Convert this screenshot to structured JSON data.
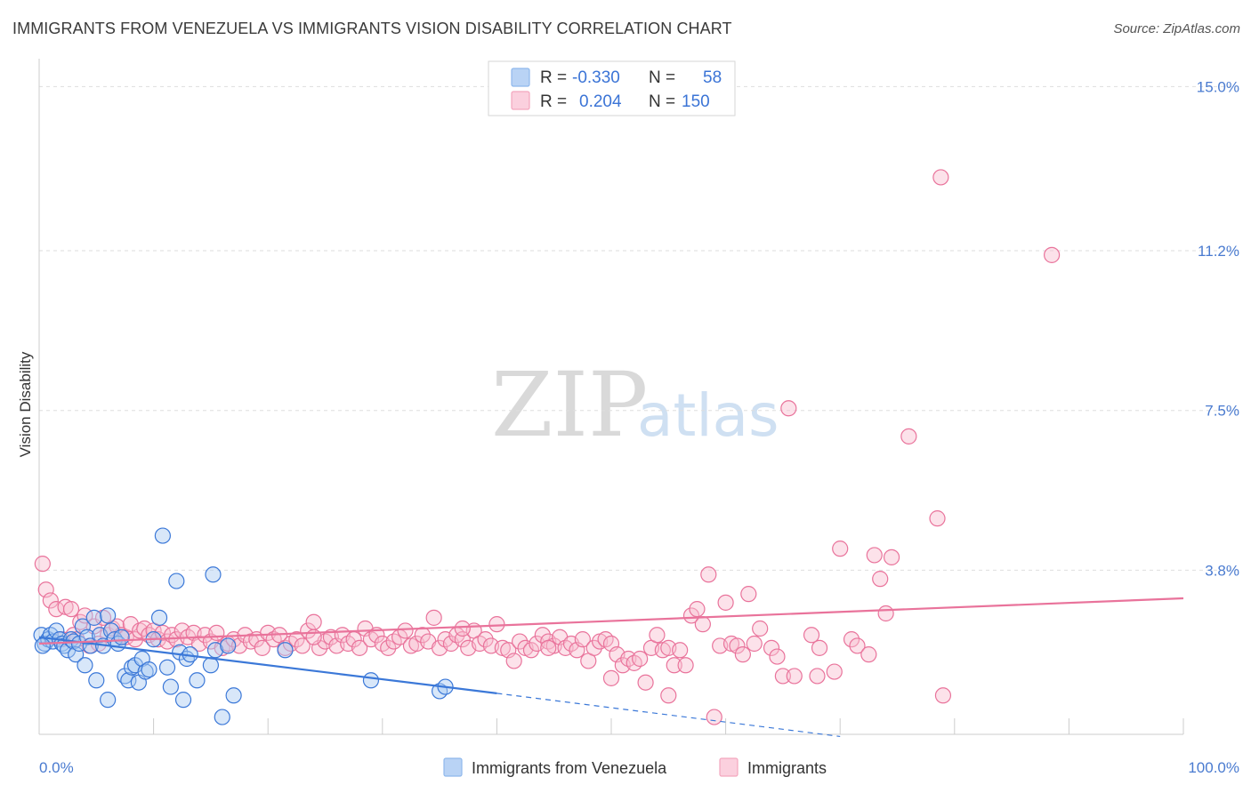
{
  "header": {
    "title": "IMMIGRANTS FROM VENEZUELA VS IMMIGRANTS VISION DISABILITY CORRELATION CHART",
    "source": "Source: ZipAtlas.com"
  },
  "watermark": {
    "zip": "ZIP",
    "atlas": "atlas"
  },
  "legend": {
    "rows": [
      {
        "r_label": "R =",
        "r_value": "-0.330",
        "n_label": "N =",
        "n_value": "58",
        "color": "#8fb8ec"
      },
      {
        "r_label": "R =",
        "r_value": "0.204",
        "n_label": "N =",
        "n_value": "150",
        "color": "#f4a6be"
      }
    ]
  },
  "bottom_legend": {
    "items": [
      {
        "label": "Immigrants from Venezuela",
        "color": "#8fb8ec"
      },
      {
        "label": "Immigrants",
        "color": "#f4a6be"
      }
    ]
  },
  "chart_data": {
    "type": "scatter",
    "title": "IMMIGRANTS FROM VENEZUELA VS IMMIGRANTS VISION DISABILITY CORRELATION CHART",
    "xlabel": "",
    "ylabel": "Vision Disability",
    "xlim": [
      0,
      100
    ],
    "ylim": [
      0,
      15.4
    ],
    "x_tick_labels": [
      "0.0%",
      "100.0%"
    ],
    "y_ticks": [
      3.8,
      7.5,
      11.2,
      15.0
    ],
    "y_tick_labels": [
      "3.8%",
      "7.5%",
      "11.2%",
      "15.0%"
    ],
    "grid": true,
    "colors": {
      "blue": "#3b78d8",
      "pink": "#e9739b",
      "blue_fill": "#a9c9f1",
      "pink_fill": "#f8bfd1"
    },
    "series": [
      {
        "name": "Immigrants from Venezuela",
        "trend": {
          "x": [
            0,
            40
          ],
          "y": [
            2.25,
            0.95
          ],
          "dashed_to": [
            70,
            -0.05
          ]
        },
        "points": [
          [
            0.2,
            2.3
          ],
          [
            0.5,
            2.1
          ],
          [
            0.8,
            2.2
          ],
          [
            1.0,
            2.3
          ],
          [
            1.2,
            2.15
          ],
          [
            1.5,
            2.4
          ],
          [
            1.8,
            2.2
          ],
          [
            2.0,
            2.1
          ],
          [
            2.2,
            2.05
          ],
          [
            2.5,
            1.95
          ],
          [
            2.8,
            2.2
          ],
          [
            3.0,
            2.15
          ],
          [
            3.2,
            1.85
          ],
          [
            3.5,
            2.1
          ],
          [
            3.8,
            2.5
          ],
          [
            4.0,
            1.6
          ],
          [
            4.2,
            2.25
          ],
          [
            4.5,
            2.05
          ],
          [
            4.8,
            2.7
          ],
          [
            5.0,
            1.25
          ],
          [
            5.3,
            2.3
          ],
          [
            5.6,
            2.05
          ],
          [
            6.0,
            2.75
          ],
          [
            6.3,
            2.4
          ],
          [
            6.6,
            2.2
          ],
          [
            6.9,
            2.1
          ],
          [
            7.2,
            2.25
          ],
          [
            7.5,
            1.35
          ],
          [
            7.8,
            1.25
          ],
          [
            8.1,
            1.55
          ],
          [
            8.4,
            1.6
          ],
          [
            8.7,
            1.2
          ],
          [
            9.0,
            1.75
          ],
          [
            9.3,
            1.45
          ],
          [
            9.6,
            1.5
          ],
          [
            10.0,
            2.2
          ],
          [
            10.5,
            2.7
          ],
          [
            10.8,
            4.6
          ],
          [
            11.2,
            1.55
          ],
          [
            11.5,
            1.1
          ],
          [
            12.0,
            3.55
          ],
          [
            12.3,
            1.9
          ],
          [
            12.6,
            0.8
          ],
          [
            12.9,
            1.75
          ],
          [
            13.2,
            1.85
          ],
          [
            13.8,
            1.25
          ],
          [
            15.0,
            1.6
          ],
          [
            15.2,
            3.7
          ],
          [
            15.4,
            1.95
          ],
          [
            16.0,
            0.4
          ],
          [
            16.5,
            2.05
          ],
          [
            17.0,
            0.9
          ],
          [
            21.5,
            1.95
          ],
          [
            29.0,
            1.25
          ],
          [
            35.0,
            1.0
          ],
          [
            35.5,
            1.1
          ],
          [
            0.3,
            2.05
          ],
          [
            6.0,
            0.8
          ]
        ]
      },
      {
        "name": "Immigrants",
        "trend": {
          "x": [
            0,
            100
          ],
          "y": [
            2.1,
            3.15
          ]
        },
        "points": [
          [
            0.3,
            3.95
          ],
          [
            0.6,
            3.35
          ],
          [
            1.0,
            3.1
          ],
          [
            1.5,
            2.9
          ],
          [
            2.0,
            2.2
          ],
          [
            2.3,
            2.95
          ],
          [
            2.8,
            2.9
          ],
          [
            3.0,
            2.3
          ],
          [
            3.3,
            2.2
          ],
          [
            3.6,
            2.6
          ],
          [
            4.0,
            2.75
          ],
          [
            4.4,
            2.05
          ],
          [
            4.8,
            2.5
          ],
          [
            5.2,
            2.1
          ],
          [
            5.6,
            2.7
          ],
          [
            6.0,
            2.3
          ],
          [
            6.4,
            2.45
          ],
          [
            6.8,
            2.5
          ],
          [
            7.2,
            2.3
          ],
          [
            7.6,
            2.25
          ],
          [
            8.0,
            2.55
          ],
          [
            8.4,
            2.2
          ],
          [
            8.8,
            2.4
          ],
          [
            9.2,
            2.45
          ],
          [
            9.6,
            2.3
          ],
          [
            10.0,
            2.4
          ],
          [
            10.4,
            2.2
          ],
          [
            10.8,
            2.35
          ],
          [
            11.2,
            2.15
          ],
          [
            11.6,
            2.3
          ],
          [
            12.0,
            2.2
          ],
          [
            12.5,
            2.4
          ],
          [
            13.0,
            2.25
          ],
          [
            13.5,
            2.35
          ],
          [
            14.0,
            2.1
          ],
          [
            14.5,
            2.3
          ],
          [
            15.0,
            2.15
          ],
          [
            15.5,
            2.35
          ],
          [
            16.0,
            2.0
          ],
          [
            16.5,
            2.1
          ],
          [
            17.0,
            2.2
          ],
          [
            17.5,
            2.05
          ],
          [
            18.0,
            2.3
          ],
          [
            18.5,
            2.15
          ],
          [
            19.0,
            2.2
          ],
          [
            19.5,
            2.0
          ],
          [
            20.0,
            2.35
          ],
          [
            20.5,
            2.2
          ],
          [
            21.0,
            2.3
          ],
          [
            21.5,
            2.0
          ],
          [
            22.0,
            2.1
          ],
          [
            22.5,
            2.2
          ],
          [
            23.0,
            2.05
          ],
          [
            23.5,
            2.4
          ],
          [
            24.0,
            2.6
          ],
          [
            24.5,
            2.0
          ],
          [
            25.0,
            2.15
          ],
          [
            25.5,
            2.25
          ],
          [
            26.0,
            2.05
          ],
          [
            26.5,
            2.3
          ],
          [
            27.0,
            2.1
          ],
          [
            27.5,
            2.2
          ],
          [
            28.0,
            2.0
          ],
          [
            28.5,
            2.45
          ],
          [
            29.0,
            2.2
          ],
          [
            29.5,
            2.3
          ],
          [
            30.0,
            2.1
          ],
          [
            30.5,
            2.0
          ],
          [
            31.0,
            2.15
          ],
          [
            31.5,
            2.25
          ],
          [
            32.0,
            2.4
          ],
          [
            32.5,
            2.05
          ],
          [
            33.0,
            2.1
          ],
          [
            33.5,
            2.3
          ],
          [
            34.0,
            2.15
          ],
          [
            34.5,
            2.7
          ],
          [
            35.0,
            2.0
          ],
          [
            35.5,
            2.2
          ],
          [
            36.0,
            2.1
          ],
          [
            36.5,
            2.3
          ],
          [
            37.0,
            2.2
          ],
          [
            37.5,
            2.0
          ],
          [
            38.0,
            2.4
          ],
          [
            38.5,
            2.1
          ],
          [
            39.0,
            2.2
          ],
          [
            39.5,
            2.05
          ],
          [
            40.0,
            2.55
          ],
          [
            40.5,
            2.0
          ],
          [
            41.0,
            1.95
          ],
          [
            41.5,
            1.7
          ],
          [
            42.0,
            2.15
          ],
          [
            42.5,
            2.0
          ],
          [
            43.0,
            1.95
          ],
          [
            43.5,
            2.1
          ],
          [
            44.0,
            2.3
          ],
          [
            44.5,
            2.15
          ],
          [
            45.0,
            2.05
          ],
          [
            45.5,
            2.25
          ],
          [
            46.0,
            2.0
          ],
          [
            46.5,
            2.1
          ],
          [
            47.0,
            1.95
          ],
          [
            47.5,
            2.2
          ],
          [
            48.0,
            1.7
          ],
          [
            48.5,
            2.0
          ],
          [
            49.0,
            2.15
          ],
          [
            49.5,
            2.2
          ],
          [
            50.0,
            2.1
          ],
          [
            50.5,
            1.85
          ],
          [
            51.0,
            1.6
          ],
          [
            51.5,
            1.75
          ],
          [
            52.0,
            1.65
          ],
          [
            52.5,
            1.75
          ],
          [
            53.0,
            1.2
          ],
          [
            53.5,
            2.0
          ],
          [
            54.0,
            2.3
          ],
          [
            54.5,
            1.95
          ],
          [
            55.0,
            2.0
          ],
          [
            55.5,
            1.6
          ],
          [
            56.0,
            1.95
          ],
          [
            56.5,
            1.6
          ],
          [
            57.0,
            2.75
          ],
          [
            57.5,
            2.9
          ],
          [
            58.0,
            2.55
          ],
          [
            58.5,
            3.7
          ],
          [
            59.0,
            0.4
          ],
          [
            59.5,
            2.05
          ],
          [
            60.0,
            3.05
          ],
          [
            60.5,
            2.1
          ],
          [
            61.0,
            2.05
          ],
          [
            61.5,
            1.85
          ],
          [
            62.0,
            3.25
          ],
          [
            62.5,
            2.1
          ],
          [
            63.0,
            2.45
          ],
          [
            64.0,
            2.0
          ],
          [
            64.5,
            1.8
          ],
          [
            65.0,
            1.35
          ],
          [
            65.5,
            7.55
          ],
          [
            66.0,
            1.35
          ],
          [
            67.5,
            2.3
          ],
          [
            68.0,
            1.35
          ],
          [
            69.5,
            1.45
          ],
          [
            70.0,
            4.3
          ],
          [
            71.0,
            2.2
          ],
          [
            71.5,
            2.05
          ],
          [
            72.5,
            1.85
          ],
          [
            73.0,
            4.15
          ],
          [
            73.5,
            3.6
          ],
          [
            74.0,
            2.8
          ],
          [
            74.5,
            4.1
          ],
          [
            76.0,
            6.9
          ],
          [
            78.5,
            5.0
          ],
          [
            78.8,
            12.9
          ],
          [
            79.0,
            0.9
          ],
          [
            88.5,
            11.1
          ],
          [
            68.2,
            2.0
          ],
          [
            55.0,
            0.9
          ],
          [
            50.0,
            1.3
          ],
          [
            44.5,
            2.0
          ],
          [
            37.0,
            2.45
          ],
          [
            24.0,
            2.25
          ]
        ]
      }
    ]
  }
}
